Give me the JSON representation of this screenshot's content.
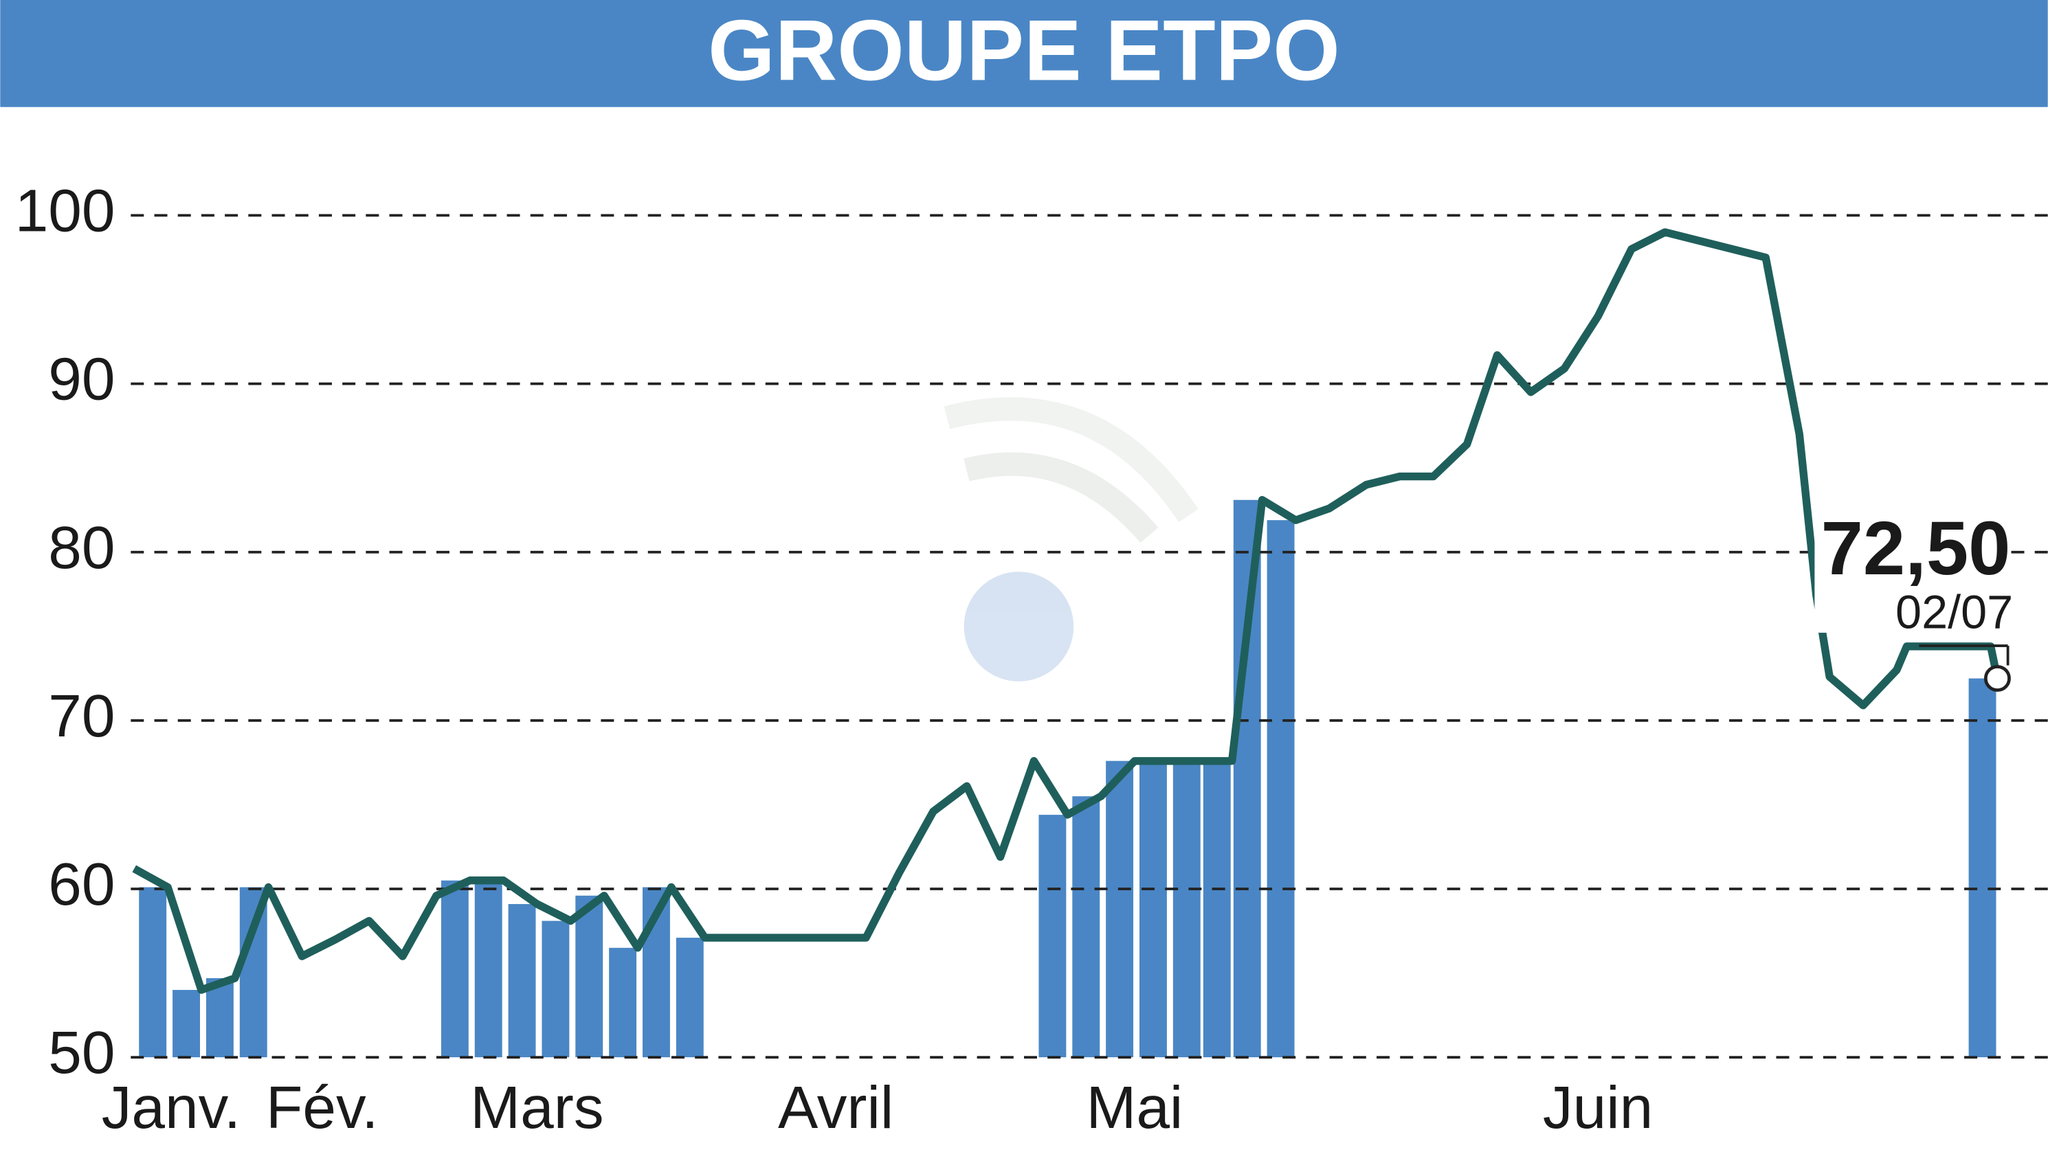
{
  "chart_data": {
    "type": "line",
    "title": "GROUPE ETPO",
    "x": [
      0,
      1,
      2,
      3,
      4,
      5,
      6,
      7,
      8,
      9,
      10,
      11,
      12,
      13,
      14,
      15,
      16,
      17,
      18,
      19,
      20,
      21,
      21.8,
      22.8,
      23.8,
      24.8,
      25.8,
      26.8,
      27.8,
      28.8,
      29.8,
      30.8,
      31.8,
      32.7,
      33.6,
      34.6,
      35.6,
      36.7,
      37.7,
      38.7,
      39.7,
      40.6,
      41.6,
      42.6,
      43.6,
      44.6,
      45.6,
      48.6,
      49.6,
      50.1,
      50.5,
      51.5,
      52.5,
      52.8,
      55.3,
      55.5
    ],
    "series": [
      {
        "color": "#1f5f5b",
        "values": [
          61.2,
          60.1,
          54,
          54.7,
          60.1,
          56,
          57,
          58.1,
          56,
          59.6,
          60.5,
          60.5,
          59.1,
          58.1,
          59.6,
          56.5,
          60.1,
          57.1,
          57.1,
          57.1,
          57.1,
          57.1,
          57.1,
          61,
          64.6,
          66.1,
          61.9,
          67.6,
          64.4,
          65.5,
          67.6,
          67.6,
          67.6,
          67.6,
          83.1,
          81.9,
          82.6,
          84,
          84.5,
          84.5,
          86.4,
          91.7,
          89.5,
          90.9,
          94,
          98,
          99,
          97.5,
          87,
          77.5,
          72.6,
          70.9,
          73,
          74.4,
          74.4,
          72.5
        ]
      }
    ],
    "bar_values": [
      null,
      60.1,
      54,
      54.7,
      60.1,
      null,
      null,
      null,
      null,
      null,
      60.5,
      60.5,
      59.1,
      58.1,
      59.6,
      56.5,
      60.1,
      57.1,
      null,
      null,
      null,
      null,
      null,
      null,
      null,
      null,
      null,
      null,
      64.4,
      65.5,
      67.6,
      67.6,
      67.6,
      67.6,
      83.1,
      81.9,
      null,
      null,
      null,
      null,
      null,
      null,
      null,
      null,
      null,
      null,
      null,
      null,
      null,
      null,
      null,
      null,
      null,
      null,
      null,
      72.5
    ],
    "bar_color": "#4a86c5",
    "last_value_label": "72,50",
    "last_date_label": "02/07",
    "xlim": [
      -0.1,
      57
    ],
    "xticks": [
      {
        "value": 1.1,
        "label": "Janv."
      },
      {
        "value": 5.6,
        "label": "Fév."
      },
      {
        "value": 12,
        "label": "Mars"
      },
      {
        "value": 20.9,
        "label": "Avril"
      },
      {
        "value": 29.8,
        "label": "Mai"
      },
      {
        "value": 43.6,
        "label": "Juin"
      }
    ],
    "ylim": [
      50,
      100
    ],
    "yticks": [
      50,
      60,
      70,
      80,
      90,
      100
    ],
    "grid": true
  }
}
